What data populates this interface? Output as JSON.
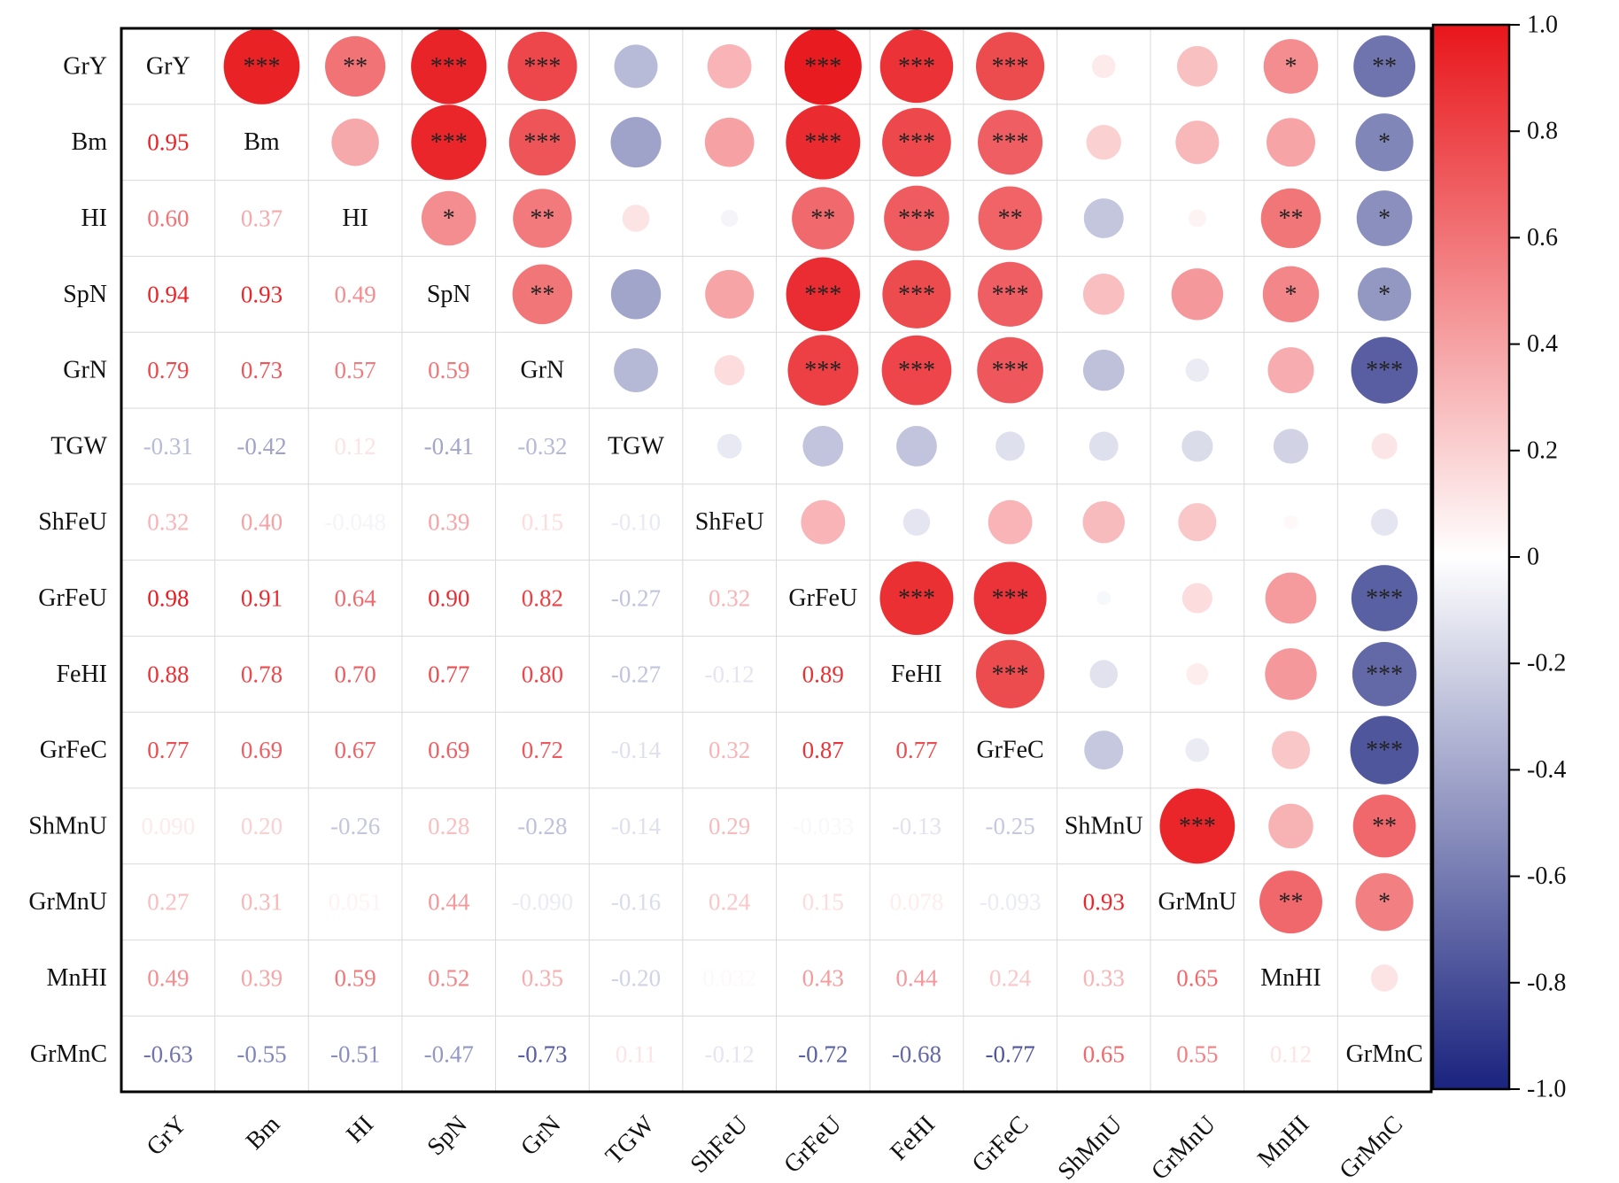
{
  "chart_data": {
    "type": "heatmap",
    "title": "",
    "variables": [
      "GrY",
      "Bm",
      "HI",
      "SpN",
      "GrN",
      "TGW",
      "ShFeU",
      "GrFeU",
      "FeHI",
      "GrFeC",
      "ShMnU",
      "GrMnU",
      "MnHI",
      "GrMnC"
    ],
    "lower_triangle_labels": [
      [],
      [
        "0.95"
      ],
      [
        "0.60",
        "0.37"
      ],
      [
        "0.94",
        "0.93",
        "0.49"
      ],
      [
        "0.79",
        "0.73",
        "0.57",
        "0.59"
      ],
      [
        "-0.31",
        "-0.42",
        "0.12",
        "-0.41",
        "-0.32"
      ],
      [
        "0.32",
        "0.40",
        "-0.048",
        "0.39",
        "0.15",
        "-0.10"
      ],
      [
        "0.98",
        "0.91",
        "0.64",
        "0.90",
        "0.82",
        "-0.27",
        "0.32"
      ],
      [
        "0.88",
        "0.78",
        "0.70",
        "0.77",
        "0.80",
        "-0.27",
        "-0.12",
        "0.89"
      ],
      [
        "0.77",
        "0.69",
        "0.67",
        "0.69",
        "0.72",
        "-0.14",
        "0.32",
        "0.87",
        "0.77"
      ],
      [
        "0.090",
        "0.20",
        "-0.26",
        "0.28",
        "-0.28",
        "-0.14",
        "0.29",
        "-0.033",
        "-0.13",
        "-0.25"
      ],
      [
        "0.27",
        "0.31",
        "0.051",
        "0.44",
        "-0.090",
        "-0.16",
        "0.24",
        "0.15",
        "0.078",
        "-0.093",
        "0.93"
      ],
      [
        "0.49",
        "0.39",
        "0.59",
        "0.52",
        "0.35",
        "-0.20",
        "0.032",
        "0.43",
        "0.44",
        "0.24",
        "0.33",
        "0.65"
      ],
      [
        "-0.63",
        "-0.55",
        "-0.51",
        "-0.47",
        "-0.73",
        "0.11",
        "-0.12",
        "-0.72",
        "-0.68",
        "-0.77",
        "0.65",
        "0.55",
        "0.12"
      ]
    ],
    "significance": [
      [],
      [
        "***"
      ],
      [
        "**",
        ""
      ],
      [
        "***",
        "***",
        "*"
      ],
      [
        "***",
        "***",
        "**",
        "**"
      ],
      [
        "",
        "",
        "",
        "",
        ""
      ],
      [
        "",
        "",
        "",
        "",
        "",
        ""
      ],
      [
        "***",
        "***",
        "**",
        "***",
        "***",
        "",
        ""
      ],
      [
        "***",
        "***",
        "***",
        "***",
        "***",
        "",
        "",
        "***"
      ],
      [
        "***",
        "***",
        "**",
        "***",
        "***",
        "",
        "",
        "***",
        "***"
      ],
      [
        "",
        "",
        "",
        "",
        "",
        "",
        "",
        "",
        "",
        ""
      ],
      [
        "",
        "",
        "",
        "",
        "",
        "",
        "",
        "",
        "",
        "",
        "***"
      ],
      [
        "*",
        "",
        "**",
        "*",
        "",
        "",
        "",
        "",
        "",
        "",
        "",
        "**"
      ],
      [
        "**",
        "*",
        "*",
        "*",
        "***",
        "",
        "",
        "***",
        "***",
        "***",
        "**",
        "*",
        ""
      ]
    ],
    "colorbar": {
      "range": [
        -1.0,
        1.0
      ],
      "tick_labels": [
        "1.0",
        "0.8",
        "0.6",
        "0.4",
        "0.2",
        "0",
        "-0.2",
        "-0.4",
        "-0.6",
        "-0.8",
        "-1.0"
      ],
      "colors": {
        "negative": "#1a237e",
        "zero": "#ffffff",
        "positive": "#e8161b"
      },
      "placement": "right"
    },
    "layout_note_free": true
  }
}
